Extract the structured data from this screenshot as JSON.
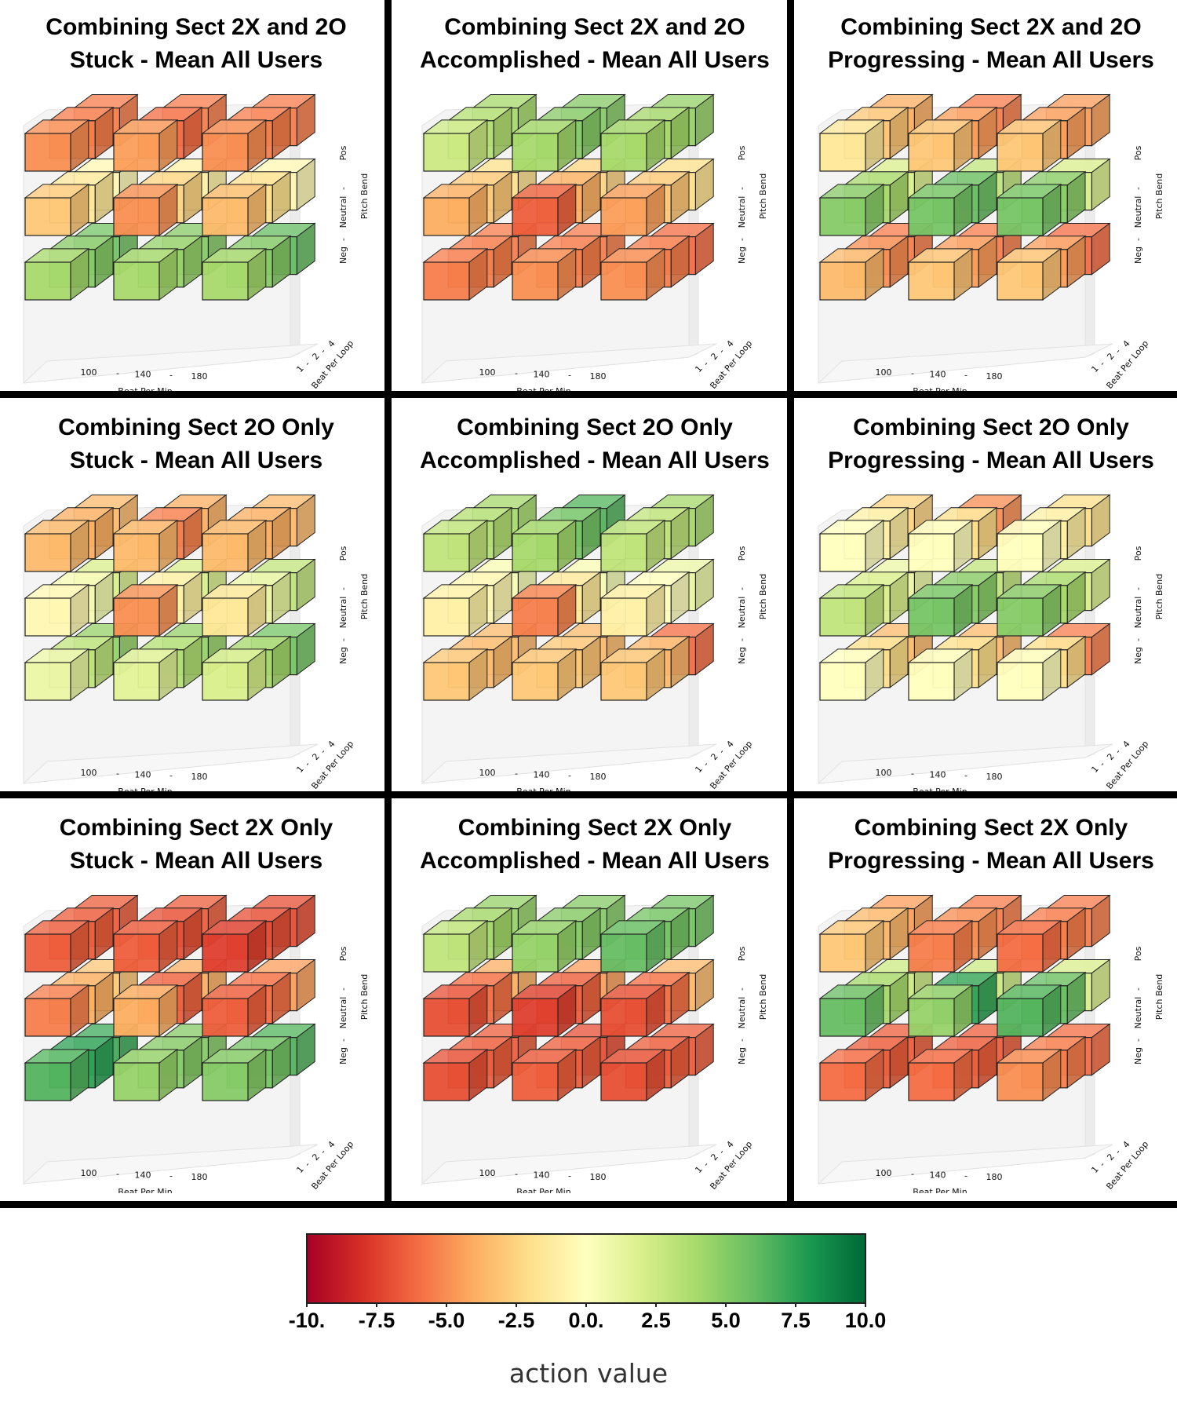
{
  "grid_rows": [
    {
      "panels": [
        {
          "title_line1": "Combining Sect 2X and 2O",
          "title_line2_state": "Stuck",
          "title_line2_rest": " - Mean All Users"
        },
        {
          "title_line1": "Combining Sect 2X and 2O",
          "title_line2_state": "Accomplished",
          "title_line2_rest": " - Mean All Users"
        },
        {
          "title_line1": "Combining Sect 2X and 2O",
          "title_line2_state": "Progressing",
          "title_line2_rest": " - Mean All Users"
        }
      ]
    },
    {
      "panels": [
        {
          "title_line1": "Combining Sect 2O Only",
          "title_line2_state": "Stuck",
          "title_line2_rest": " - Mean All Users"
        },
        {
          "title_line1": "Combining Sect 2O Only",
          "title_line2_state": "Accomplished",
          "title_line2_rest": " - Mean All Users"
        },
        {
          "title_line1": "Combining Sect 2O Only",
          "title_line2_state": "Progressing",
          "title_line2_rest": " - Mean All Users"
        }
      ]
    },
    {
      "panels": [
        {
          "title_line1": "Combining Sect 2X Only",
          "title_line2_state": "Stuck",
          "title_line2_rest": " - Mean All Users"
        },
        {
          "title_line1": "Combining Sect 2X Only",
          "title_line2_state": "Accomplished",
          "title_line2_rest": " - Mean All Users"
        },
        {
          "title_line1": "Combining Sect 2X Only",
          "title_line2_state": "Progressing",
          "title_line2_rest": " - Mean All Users"
        }
      ]
    }
  ],
  "axes": {
    "x_label": "Beat Per Min",
    "x_ticks": [
      "100",
      "-",
      "140",
      "-",
      "180"
    ],
    "y_label": "Beat Per Loop",
    "y_ticks": [
      "1",
      "-",
      "2",
      "-",
      "4"
    ],
    "z_label": "Pitch Bend",
    "z_ticks": [
      "Neg",
      "-",
      "Neutral",
      "-",
      "Pos"
    ]
  },
  "colorbar": {
    "label": "action value",
    "ticks": [
      "-10.",
      "-7.5",
      "-5.0",
      "-2.5",
      "0.0.",
      "2.5",
      "5.0",
      "7.5",
      "10.0"
    ],
    "tick_values": [
      -10,
      -7.5,
      -5,
      -2.5,
      0,
      2.5,
      5,
      7.5,
      10
    ],
    "range": [
      -10,
      10
    ],
    "colormap": "RdYlGn",
    "stops": [
      "#a50026",
      "#d73027",
      "#f46d43",
      "#fdae61",
      "#fee08b",
      "#ffffbf",
      "#d9ef8b",
      "#a6d96a",
      "#66bd63",
      "#1a9850",
      "#006837"
    ]
  },
  "chart_data": [
    {
      "type": "3d-voxel",
      "title": "Combining Sect 2X and 2O Stuck - Mean All Users",
      "x_categories": [
        "100",
        "140",
        "180"
      ],
      "y_categories": [
        "1",
        "2",
        "4"
      ],
      "z_categories": [
        "Neg",
        "Neutral",
        "Pos"
      ],
      "values_by_pitch": {
        "Pos": [
          [
            -5,
            -5.5,
            -5.5
          ],
          [
            -4.5,
            -6,
            -5.5
          ],
          [
            -5,
            -5.5,
            -5.5
          ]
        ],
        "Neutral": [
          [
            -3,
            -1.5,
            -0.5
          ],
          [
            -5,
            -2.5,
            -1
          ],
          [
            -3.5,
            -2,
            -0.5
          ]
        ],
        "Neg": [
          [
            4,
            5,
            5.5
          ],
          [
            4,
            4.5,
            5
          ],
          [
            4,
            5,
            6
          ]
        ]
      }
    },
    {
      "type": "3d-voxel",
      "title": "Combining Sect 2X and 2O Accomplished - Mean All Users",
      "x_categories": [
        "100",
        "140",
        "180"
      ],
      "y_categories": [
        "1",
        "2",
        "4"
      ],
      "z_categories": [
        "Neg",
        "Neutral",
        "Pos"
      ],
      "values_by_pitch": {
        "Pos": [
          [
            2.5,
            3.5,
            4
          ],
          [
            4,
            5,
            5
          ],
          [
            4,
            4,
            4.5
          ]
        ],
        "Neutral": [
          [
            -4,
            -3,
            -2
          ],
          [
            -6.5,
            -4,
            -2.5
          ],
          [
            -4.5,
            -3,
            -2
          ]
        ],
        "Neg": [
          [
            -5.5,
            -5.5,
            -5.5
          ],
          [
            -5,
            -5.5,
            -5.5
          ],
          [
            -5,
            -5.5,
            -6
          ]
        ]
      }
    },
    {
      "type": "3d-voxel",
      "title": "Combining Sect 2X and 2O Progressing - Mean All Users",
      "x_categories": [
        "100",
        "140",
        "180"
      ],
      "y_categories": [
        "1",
        "2",
        "4"
      ],
      "z_categories": [
        "Neg",
        "Neutral",
        "Pos"
      ],
      "values_by_pitch": {
        "Pos": [
          [
            -1.5,
            -3,
            -4
          ],
          [
            -3,
            -4.5,
            -5.5
          ],
          [
            -3,
            -4.5,
            -4.5
          ]
        ],
        "Neutral": [
          [
            5,
            4,
            2
          ],
          [
            5.5,
            6,
            3
          ],
          [
            5.5,
            5,
            2
          ]
        ],
        "Neg": [
          [
            -3.5,
            -5,
            -5.5
          ],
          [
            -3,
            -4.5,
            -5.5
          ],
          [
            -3,
            -4.5,
            -6
          ]
        ]
      }
    },
    {
      "type": "3d-voxel",
      "title": "Combining Sect 2O Only Stuck - Mean All Users",
      "x_categories": [
        "100",
        "140",
        "180"
      ],
      "y_categories": [
        "1",
        "2",
        "4"
      ],
      "z_categories": [
        "Neg",
        "Neutral",
        "Pos"
      ],
      "values_by_pitch": {
        "Pos": [
          [
            -3.5,
            -4,
            -3.5
          ],
          [
            -3.5,
            -5.5,
            -4
          ],
          [
            -3.5,
            -4,
            -3.5
          ]
        ],
        "Neutral": [
          [
            -0.5,
            0.5,
            2
          ],
          [
            -5,
            -1,
            2
          ],
          [
            -1.5,
            1,
            3
          ]
        ],
        "Neg": [
          [
            1,
            3,
            4.5
          ],
          [
            1.5,
            3.5,
            4.5
          ],
          [
            2,
            4,
            5.5
          ]
        ]
      }
    },
    {
      "type": "3d-voxel",
      "title": "Combining Sect 2O Only Accomplished - Mean All Users",
      "x_categories": [
        "100",
        "140",
        "180"
      ],
      "y_categories": [
        "1",
        "2",
        "4"
      ],
      "z_categories": [
        "Neg",
        "Neutral",
        "Pos"
      ],
      "values_by_pitch": {
        "Pos": [
          [
            3,
            3.5,
            4
          ],
          [
            4,
            5.5,
            6.5
          ],
          [
            3,
            3,
            4
          ]
        ],
        "Neutral": [
          [
            -1,
            -0.5,
            0.5
          ],
          [
            -5.5,
            -1.5,
            0.5
          ],
          [
            -1,
            0,
            1
          ]
        ],
        "Neg": [
          [
            -3,
            -3.5,
            -3.5
          ],
          [
            -3,
            -3,
            -3.5
          ],
          [
            -3,
            -3.5,
            -6
          ]
        ]
      }
    },
    {
      "type": "3d-voxel",
      "title": "Combining Sect 2O Only Progressing - Mean All Users",
      "x_categories": [
        "100",
        "140",
        "180"
      ],
      "y_categories": [
        "1",
        "2",
        "4"
      ],
      "z_categories": [
        "Neg",
        "Neutral",
        "Pos"
      ],
      "values_by_pitch": {
        "Pos": [
          [
            0,
            -1,
            -2.5
          ],
          [
            0,
            -2,
            -5
          ],
          [
            0,
            -1,
            -2
          ]
        ],
        "Neutral": [
          [
            3,
            2,
            1
          ],
          [
            5.5,
            5,
            3
          ],
          [
            5,
            4,
            2
          ]
        ],
        "Neg": [
          [
            0,
            -2,
            -3.5
          ],
          [
            0,
            -2,
            -3.5
          ],
          [
            0,
            -2,
            -5.5
          ]
        ]
      }
    },
    {
      "type": "3d-voxel",
      "title": "Combining Sect 2X Only Stuck - Mean All Users",
      "x_categories": [
        "100",
        "140",
        "180"
      ],
      "y_categories": [
        "1",
        "2",
        "4"
      ],
      "z_categories": [
        "Neg",
        "Neutral",
        "Pos"
      ],
      "values_by_pitch": {
        "Pos": [
          [
            -6.5,
            -6.5,
            -6.5
          ],
          [
            -6.5,
            -7,
            -6.5
          ],
          [
            -7.5,
            -7,
            -7
          ]
        ],
        "Neutral": [
          [
            -5.5,
            -4,
            -3
          ],
          [
            -4,
            -6.5,
            -4
          ],
          [
            -6.5,
            -6,
            -4.5
          ]
        ],
        "Neg": [
          [
            6.5,
            7.5,
            7
          ],
          [
            4.5,
            5,
            5
          ],
          [
            5,
            5.5,
            6.5
          ]
        ]
      }
    },
    {
      "type": "3d-voxel",
      "title": "Combining Sect 2X Only Accomplished - Mean All Users",
      "x_categories": [
        "100",
        "140",
        "180"
      ],
      "y_categories": [
        "1",
        "2",
        "4"
      ],
      "z_categories": [
        "Neg",
        "Neutral",
        "Pos"
      ],
      "values_by_pitch": {
        "Pos": [
          [
            3,
            4,
            4.5
          ],
          [
            4.5,
            5,
            5
          ],
          [
            6,
            5.5,
            5.5
          ]
        ],
        "Neutral": [
          [
            -7,
            -6,
            -4
          ],
          [
            -7.5,
            -6.5,
            -4.5
          ],
          [
            -7,
            -6,
            -3.5
          ]
        ],
        "Neg": [
          [
            -7,
            -6.5,
            -6.5
          ],
          [
            -6.5,
            -6.5,
            -7
          ],
          [
            -7,
            -6.5,
            -6.5
          ]
        ]
      }
    },
    {
      "type": "3d-voxel",
      "title": "Combining Sect 2X Only Progressing - Mean All Users",
      "x_categories": [
        "100",
        "140",
        "180"
      ],
      "y_categories": [
        "1",
        "2",
        "4"
      ],
      "z_categories": [
        "Neg",
        "Neutral",
        "Pos"
      ],
      "values_by_pitch": {
        "Pos": [
          [
            -3,
            -3.5,
            -4.5
          ],
          [
            -5.5,
            -5,
            -5.5
          ],
          [
            -6,
            -5.5,
            -5.5
          ]
        ],
        "Neutral": [
          [
            6,
            4,
            2.5
          ],
          [
            4.5,
            7.5,
            2.5
          ],
          [
            6.5,
            6,
            2
          ]
        ],
        "Neg": [
          [
            -6,
            -6.5,
            -6.5
          ],
          [
            -6,
            -6.5,
            -6.5
          ],
          [
            -5,
            -5.5,
            -6
          ]
        ]
      }
    }
  ]
}
